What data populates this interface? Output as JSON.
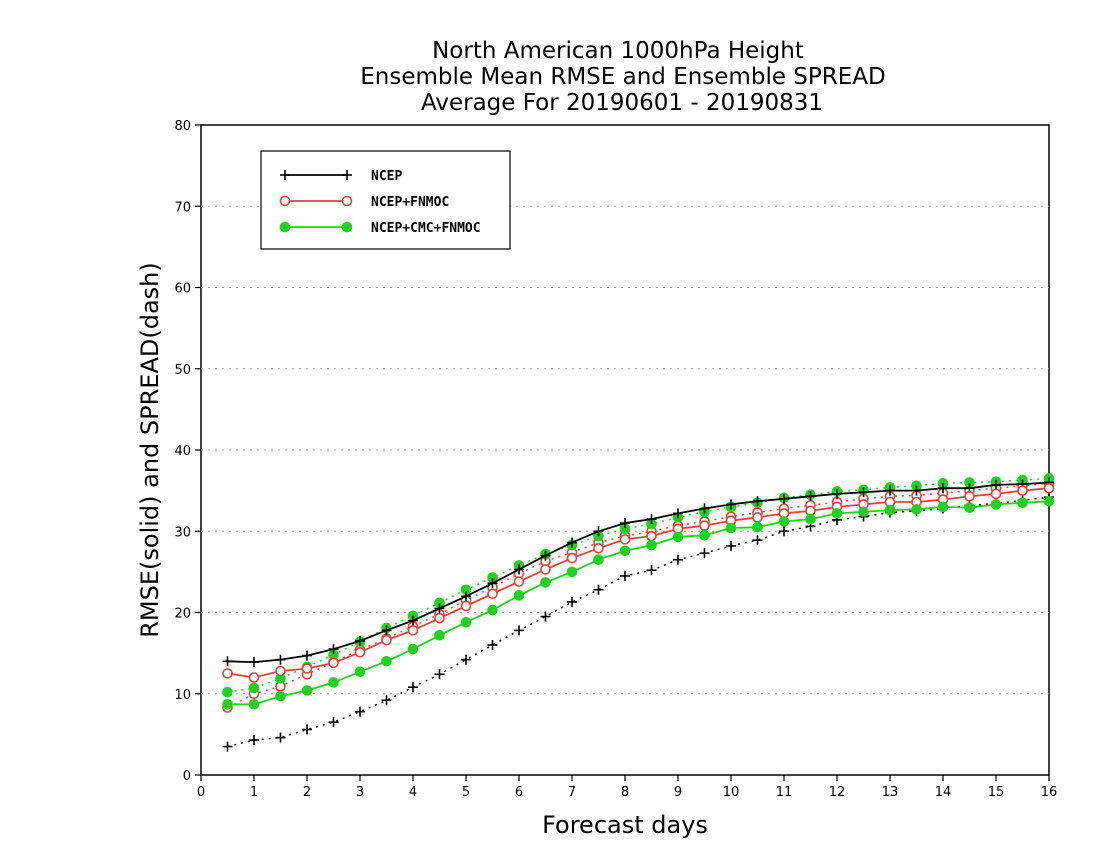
{
  "chart_data": {
    "type": "line",
    "title_lines": [
      "North American 1000hPa Height",
      "Ensemble Mean RMSE and Ensemble SPREAD",
      "Average For 20190601 - 20190831"
    ],
    "xlabel": "Forecast days",
    "ylabel": "RMSE(solid) and SPREAD(dash)",
    "xlim": [
      0,
      16
    ],
    "ylim": [
      0,
      80
    ],
    "x_ticks": [
      0,
      1,
      2,
      3,
      4,
      5,
      6,
      7,
      8,
      9,
      10,
      11,
      12,
      13,
      14,
      15,
      16
    ],
    "y_ticks": [
      0,
      10,
      20,
      30,
      40,
      50,
      60,
      70,
      80
    ],
    "grid": "horizontal dotted",
    "legend_position": "top-left",
    "x": [
      0.5,
      1,
      1.5,
      2,
      2.5,
      3,
      3.5,
      4,
      4.5,
      5,
      5.5,
      6,
      6.5,
      7,
      7.5,
      8,
      8.5,
      9,
      9.5,
      10,
      10.5,
      11,
      11.5,
      12,
      12.5,
      13,
      13.5,
      14,
      14.5,
      15,
      15.5,
      16
    ],
    "series": [
      {
        "name": "NCEP",
        "color": "#000000",
        "marker": "plus",
        "rmse": [
          14.0,
          13.9,
          14.2,
          14.7,
          15.5,
          16.5,
          17.8,
          19.0,
          20.5,
          22.0,
          23.6,
          25.3,
          27.0,
          28.6,
          30.0,
          31.0,
          31.5,
          32.2,
          32.8,
          33.3,
          33.7,
          34.0,
          34.3,
          34.6,
          34.8,
          35.0,
          35.0,
          35.3,
          35.3,
          35.7,
          35.8,
          36.0
        ],
        "spread": [
          3.5,
          4.3,
          4.6,
          5.6,
          6.5,
          7.8,
          9.2,
          10.8,
          12.4,
          14.2,
          16.0,
          17.8,
          19.5,
          21.3,
          22.8,
          24.5,
          25.2,
          26.5,
          27.3,
          28.2,
          28.9,
          30.0,
          30.6,
          31.4,
          31.8,
          32.3,
          32.5,
          32.8,
          33.2,
          33.4,
          33.8,
          34.2
        ]
      },
      {
        "name": "NCEP+FNMOC",
        "color": "#e8403a",
        "marker": "open-circle",
        "rmse": [
          12.5,
          12.0,
          12.8,
          13.1,
          13.8,
          15.1,
          16.6,
          17.8,
          19.3,
          20.8,
          22.3,
          23.8,
          25.3,
          26.7,
          27.9,
          29.0,
          29.4,
          30.3,
          30.7,
          31.3,
          31.7,
          32.2,
          32.5,
          33.0,
          33.3,
          33.6,
          33.6,
          33.9,
          34.3,
          34.6,
          35.0,
          35.3
        ],
        "spread": [
          8.3,
          10.0,
          10.9,
          12.4,
          13.9,
          15.4,
          16.8,
          18.3,
          19.8,
          21.5,
          23.1,
          24.8,
          26.3,
          27.4,
          28.6,
          29.4,
          30.0,
          30.7,
          31.2,
          31.8,
          32.3,
          32.8,
          33.2,
          33.6,
          34.0,
          34.3,
          34.4,
          34.7,
          35.0,
          35.3,
          35.6,
          35.9
        ]
      },
      {
        "name": "NCEP+CMC+FNMOC",
        "color": "#1ed21e",
        "marker": "filled-circle",
        "rmse": [
          8.7,
          8.7,
          9.7,
          10.4,
          11.4,
          12.7,
          14.0,
          15.5,
          17.2,
          18.8,
          20.3,
          22.1,
          23.7,
          25.0,
          26.5,
          27.6,
          28.3,
          29.3,
          29.5,
          30.4,
          30.5,
          31.2,
          31.5,
          32.2,
          32.4,
          32.6,
          32.7,
          33.0,
          32.9,
          33.3,
          33.5,
          33.7
        ],
        "spread": [
          10.2,
          10.7,
          11.9,
          13.3,
          14.8,
          16.4,
          18.1,
          19.6,
          21.2,
          22.8,
          24.3,
          25.8,
          27.2,
          28.3,
          29.4,
          30.3,
          30.9,
          31.7,
          32.4,
          33.0,
          33.5,
          34.1,
          34.5,
          34.9,
          35.1,
          35.4,
          35.6,
          35.9,
          36.0,
          36.1,
          36.3,
          36.5
        ]
      }
    ]
  }
}
